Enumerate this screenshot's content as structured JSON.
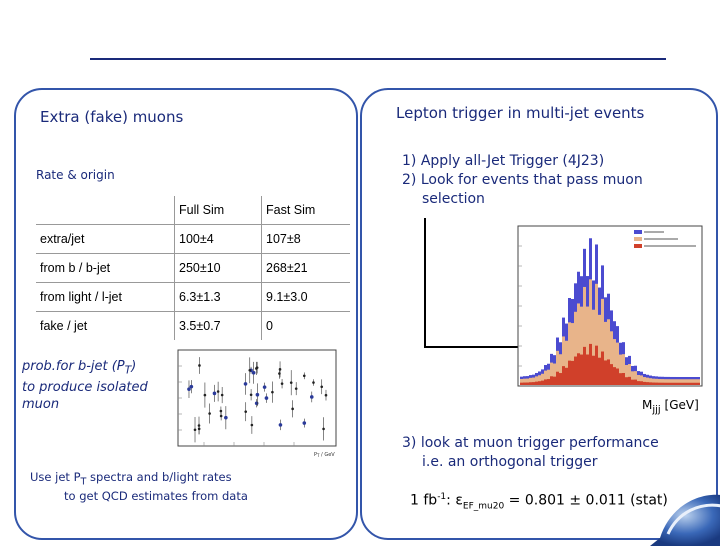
{
  "left": {
    "title": "Extra (fake) muons",
    "subtitle": "Rate & origin",
    "table": {
      "header": [
        "",
        "Full Sim",
        "Fast Sim"
      ],
      "rows": [
        [
          "extra/jet",
          "100±4",
          "107±8"
        ],
        [
          "from b / b-jet",
          "250±10",
          "268±21"
        ],
        [
          "from  light / l-jet",
          "6.3±1.3",
          "9.1±3.0"
        ],
        [
          "fake / jet",
          "3.5±0.7",
          "0"
        ]
      ]
    },
    "prob_text_1": "prob.for  b-jet (P",
    "prob_text_sub": "T",
    "prob_text_2": ")",
    "prob_text_3": "to produce  isolated",
    "prob_text_4": "muon",
    "qcd_1a": "Use jet P",
    "qcd_sub": "T",
    "qcd_1b": " spectra and b/light rates",
    "qcd_2": "to get QCD  estimates from data"
  },
  "right": {
    "title": "Lepton trigger in multi-jet events",
    "step1": "1) Apply all-Jet Trigger (4J23)",
    "step2a": "2)  Look for events that pass muon",
    "step2b": "selection",
    "step3a": "3)  look at muon trigger performance",
    "step3b": "i.e. an orthogonal trigger",
    "axis_label": "M",
    "axis_sub": "jjj",
    "axis_unit": " [GeV]",
    "eq_lumi": "1 fb",
    "eq_exp": "-1",
    "eq_eps": ": ε",
    "eq_sub": "EF_mu20",
    "eq_val": " = 0.801 ± 0.011 (stat)"
  }
}
